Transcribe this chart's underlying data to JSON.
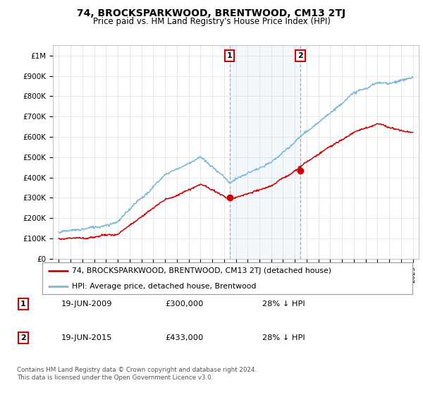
{
  "title": "74, BROCKSPARKWOOD, BRENTWOOD, CM13 2TJ",
  "subtitle": "Price paid vs. HM Land Registry's House Price Index (HPI)",
  "ylim": [
    0,
    1050000
  ],
  "yticks": [
    0,
    100000,
    200000,
    300000,
    400000,
    500000,
    600000,
    700000,
    800000,
    900000,
    1000000
  ],
  "ytick_labels": [
    "£0",
    "£100K",
    "£200K",
    "£300K",
    "£400K",
    "£500K",
    "£600K",
    "£700K",
    "£800K",
    "£900K",
    "£1M"
  ],
  "hpi_color": "#7ab8d9",
  "price_color": "#cc0000",
  "sale1_year": 2009.47,
  "sale1_price": 300000,
  "sale2_year": 2015.47,
  "sale2_price": 433000,
  "legend_label1": "74, BROCKSPARKWOOD, BRENTWOOD, CM13 2TJ (detached house)",
  "legend_label2": "HPI: Average price, detached house, Brentwood",
  "table_row1": [
    "1",
    "19-JUN-2009",
    "£300,000",
    "28% ↓ HPI"
  ],
  "table_row2": [
    "2",
    "19-JUN-2015",
    "£433,000",
    "28% ↓ HPI"
  ],
  "footnote": "Contains HM Land Registry data © Crown copyright and database right 2024.\nThis data is licensed under the Open Government Licence v3.0.",
  "grid_color": "#dddddd",
  "shade_color": "#cce0f0",
  "box_edge_color": "#cc0000"
}
